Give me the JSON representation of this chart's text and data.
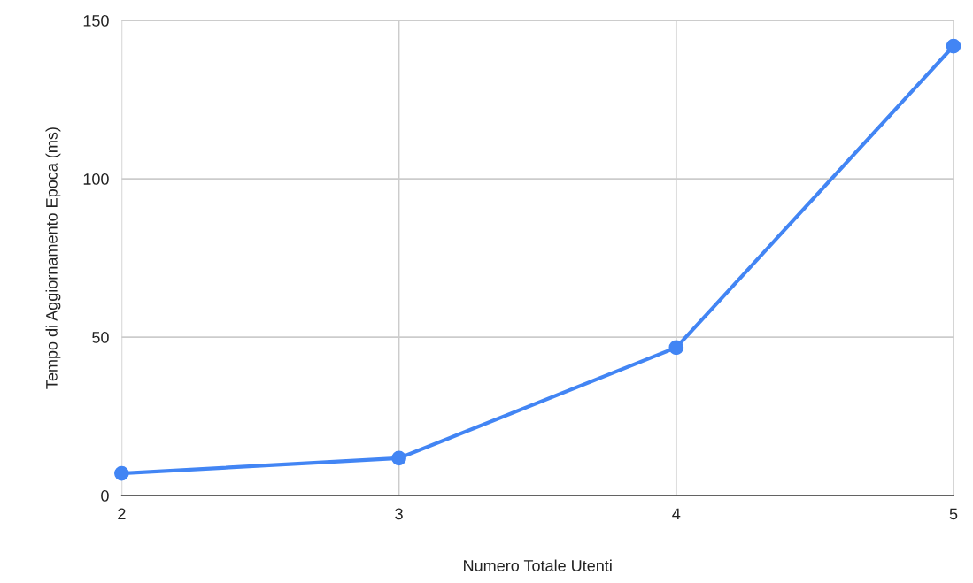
{
  "chart_data": {
    "type": "line",
    "xlabel": "Numero Totale Utenti",
    "ylabel": "Tempo di Aggiornamento Epoca (ms)",
    "x": [
      2,
      3,
      4,
      5
    ],
    "series": [
      {
        "color": "#4285f4",
        "values": [
          7.0,
          11.8,
          46.7,
          141.9
        ]
      }
    ],
    "xlim": [
      2,
      5
    ],
    "xticks": [
      2,
      3,
      4,
      5
    ],
    "ylim": [
      0,
      150
    ],
    "yticks": [
      0,
      50,
      100,
      150
    ],
    "grid": true,
    "marker": "circle",
    "line_style": "solid"
  }
}
